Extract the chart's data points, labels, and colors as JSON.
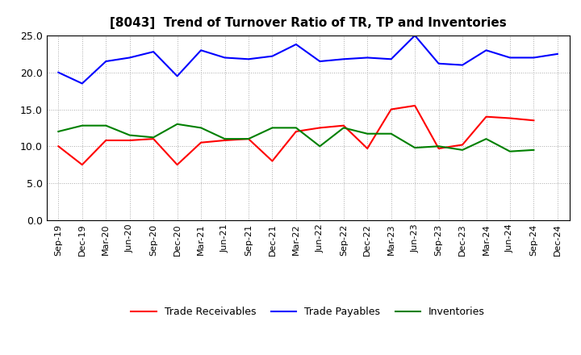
{
  "title": "[8043]  Trend of Turnover Ratio of TR, TP and Inventories",
  "x_labels": [
    "Sep-19",
    "Dec-19",
    "Mar-20",
    "Jun-20",
    "Sep-20",
    "Dec-20",
    "Mar-21",
    "Jun-21",
    "Sep-21",
    "Dec-21",
    "Mar-22",
    "Jun-22",
    "Sep-22",
    "Dec-22",
    "Mar-23",
    "Jun-23",
    "Sep-23",
    "Dec-23",
    "Mar-24",
    "Jun-24",
    "Sep-24",
    "Dec-24"
  ],
  "trade_receivables": [
    10.0,
    7.5,
    10.8,
    10.8,
    11.0,
    7.5,
    10.5,
    10.8,
    11.0,
    8.0,
    12.0,
    12.5,
    12.8,
    9.7,
    15.0,
    15.5,
    9.7,
    10.2,
    14.0,
    13.8,
    13.5,
    null
  ],
  "trade_payables": [
    20.0,
    18.5,
    21.5,
    22.0,
    22.8,
    19.5,
    23.0,
    22.0,
    21.8,
    22.2,
    23.8,
    21.5,
    21.8,
    22.0,
    21.8,
    25.0,
    21.2,
    21.0,
    23.0,
    22.0,
    22.0,
    22.5
  ],
  "inventories": [
    12.0,
    12.8,
    12.8,
    11.5,
    11.2,
    13.0,
    12.5,
    11.0,
    11.0,
    12.5,
    12.5,
    10.0,
    12.5,
    11.7,
    11.7,
    9.8,
    10.0,
    9.5,
    11.0,
    9.3,
    9.5,
    null
  ],
  "tr_color": "#ff0000",
  "tp_color": "#0000ff",
  "inv_color": "#008000",
  "ylim": [
    0.0,
    25.0
  ],
  "yticks": [
    0.0,
    5.0,
    10.0,
    15.0,
    20.0,
    25.0
  ],
  "background_color": "#ffffff",
  "grid_color": "#aaaaaa",
  "title_fontsize": 11,
  "tick_fontsize": 8,
  "legend_fontsize": 9
}
